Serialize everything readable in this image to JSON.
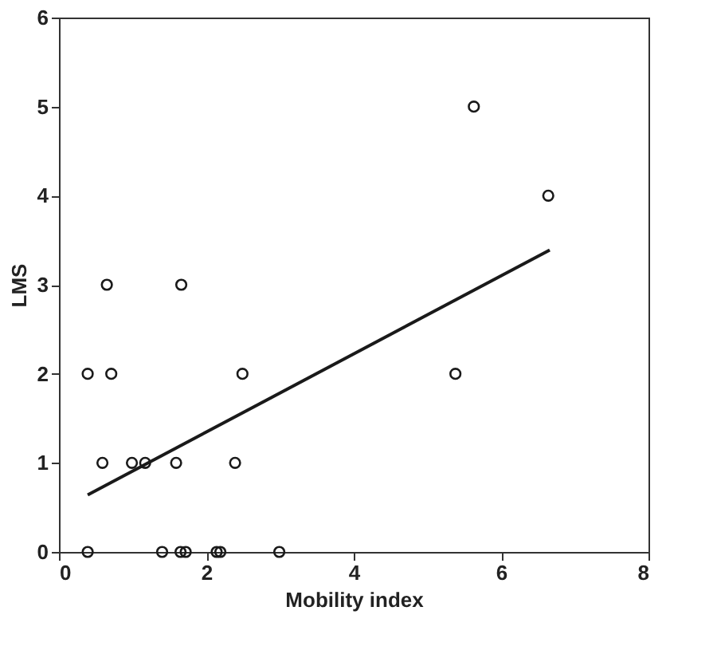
{
  "chart_data": {
    "type": "scatter",
    "xlabel": "Mobility index",
    "ylabel": "LMS",
    "xlim": [
      0,
      8
    ],
    "xticks": [
      0,
      2,
      4,
      6,
      8
    ],
    "ylim": [
      0,
      6
    ],
    "yticks": [
      0,
      1,
      2,
      3,
      4,
      5,
      6
    ],
    "grid": false,
    "marker": "circle",
    "series": [
      {
        "color": "#1a1a1a",
        "x": [
          0.39,
          0.39,
          0.65,
          0.71,
          0.59,
          0.99,
          1.17,
          1.59,
          1.66,
          1.4,
          1.65,
          1.72,
          2.14,
          2.19,
          2.39,
          2.49,
          2.99,
          5.38,
          5.63,
          6.64
        ],
        "values": [
          2,
          0,
          3,
          2,
          1,
          1,
          1,
          1,
          3,
          0,
          0,
          0,
          0,
          0,
          1,
          2,
          0,
          2,
          5,
          4
        ]
      },
      {
        "type": "line",
        "color": "#1a1a1a",
        "x": [
          0.39,
          6.66
        ],
        "values": [
          0.64,
          3.39
        ],
        "line_style": "solid",
        "marker": "none"
      }
    ]
  }
}
